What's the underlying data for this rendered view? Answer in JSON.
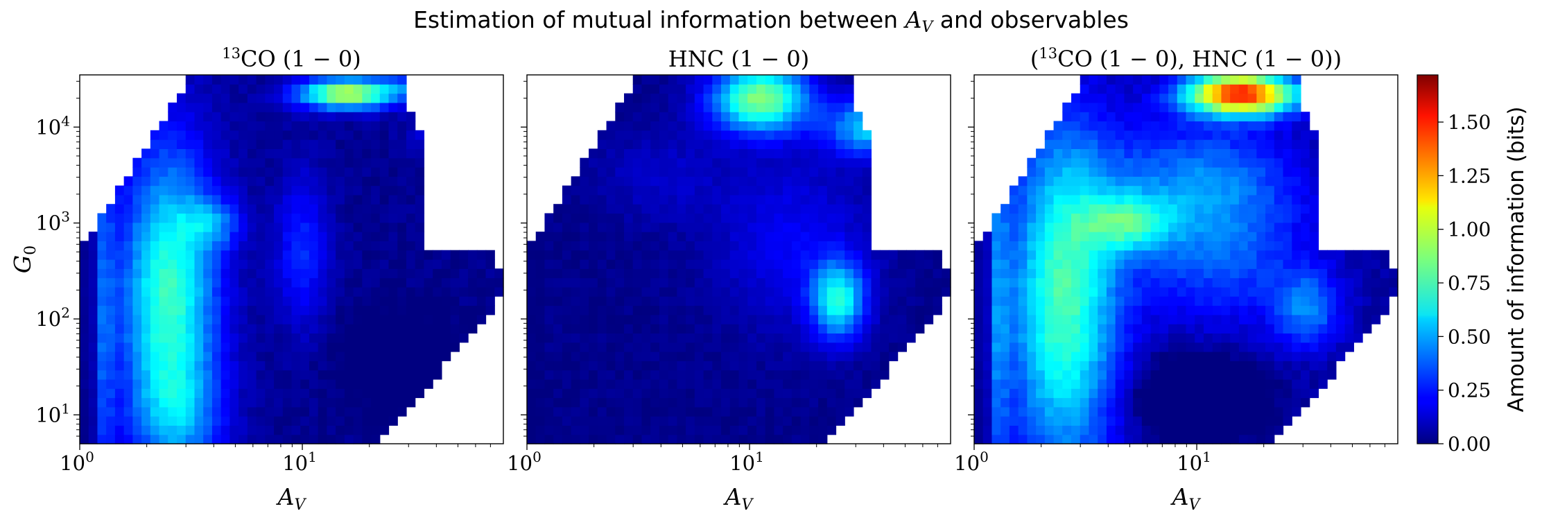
{
  "figure": {
    "title": "Estimation of mutual information between A_V and observables"
  },
  "chart_data": [
    {
      "type": "heatmap",
      "title": "13CO (1 − 0)",
      "xlabel": "A_V",
      "ylabel": "G_0",
      "xscale": "log",
      "yscale": "log",
      "xlim": [
        1,
        80
      ],
      "ylim": [
        5,
        35000
      ],
      "x_ticks": [
        "10^0",
        "10^1"
      ],
      "y_ticks": [
        "10^1",
        "10^2",
        "10^3",
        "10^4"
      ],
      "pattern": "13co"
    },
    {
      "type": "heatmap",
      "title": "HNC (1 − 0)",
      "xlabel": "A_V",
      "ylabel": "",
      "xscale": "log",
      "yscale": "log",
      "xlim": [
        1,
        80
      ],
      "ylim": [
        5,
        35000
      ],
      "x_ticks": [
        "10^0",
        "10^1"
      ],
      "y_ticks": [],
      "pattern": "hnc"
    },
    {
      "type": "heatmap",
      "title": "(13CO (1 − 0), HNC (1 − 0))",
      "xlabel": "A_V",
      "ylabel": "",
      "xscale": "log",
      "yscale": "log",
      "xlim": [
        1,
        80
      ],
      "ylim": [
        5,
        35000
      ],
      "x_ticks": [
        "10^0",
        "10^1"
      ],
      "y_ticks": [],
      "pattern": "joint"
    }
  ],
  "colorbar": {
    "label": "Amount of information (bits)",
    "min": 0,
    "max": 1.72,
    "ticks": [
      "0.00",
      "0.25",
      "0.50",
      "0.75",
      "1.00",
      "1.25",
      "1.50"
    ],
    "colormap": "jet"
  }
}
